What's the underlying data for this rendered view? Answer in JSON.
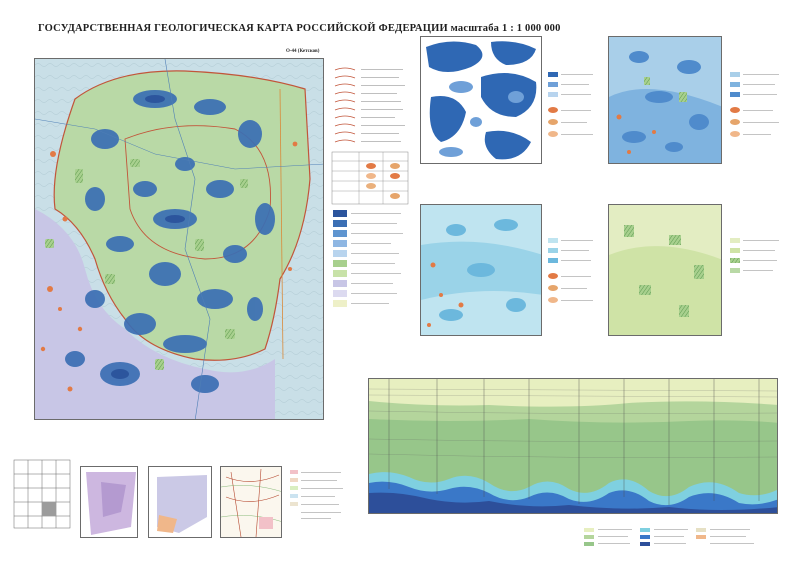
{
  "header": {
    "ministry_lines": [],
    "title": "ГОСУДАРСТВЕННАЯ ГЕОЛОГИЧЕСКАЯ КАРТА РОССИЙСКОЙ ФЕДЕРАЦИИ масштаба 1 : 1 000 000",
    "subtitle": "",
    "series": "",
    "map_name": "",
    "sheet_code": "О-44 (Кетсков)"
  },
  "main_map": {
    "legend_title": "",
    "legend_sections": [],
    "colors": {
      "background": "#c9dfe7",
      "lowland_green": "#b9d9a6",
      "upland_violet": "#c8c6e6",
      "reservoir_blue": "#3b6fb4",
      "deep_blue": "#2c559d",
      "boundary_red": "#c2553a",
      "prospect_orange": "#e27a45",
      "hatch_green": "#69a65a"
    },
    "coord_labels": [],
    "row_labels": []
  },
  "schemes": [
    {
      "title": "",
      "scale": "",
      "palette": "white-blue"
    },
    {
      "title": "",
      "scale": "",
      "palette": "light-blue"
    },
    {
      "title": "",
      "scale": "",
      "palette": "cyan"
    },
    {
      "title": "",
      "scale": "",
      "palette": "light-green"
    }
  ],
  "bottom_maps": [
    {
      "title": "",
      "scale": ""
    },
    {
      "title": "",
      "scale": ""
    },
    {
      "title": "",
      "scale": ""
    }
  ],
  "section": {
    "title": "",
    "scale": "",
    "well_labels": [],
    "depth_labels": [],
    "legend_title": "",
    "colors": {
      "top_light": "#e7efc0",
      "middle_green": "#b4d59c",
      "lower_green": "#8ec07c",
      "cyan": "#7fd0e0",
      "blue": "#3a78c8",
      "deep": "#2d4f9a",
      "basement": "#e6e0c4"
    }
  },
  "credits": {
    "lines": [],
    "copyright": ""
  }
}
